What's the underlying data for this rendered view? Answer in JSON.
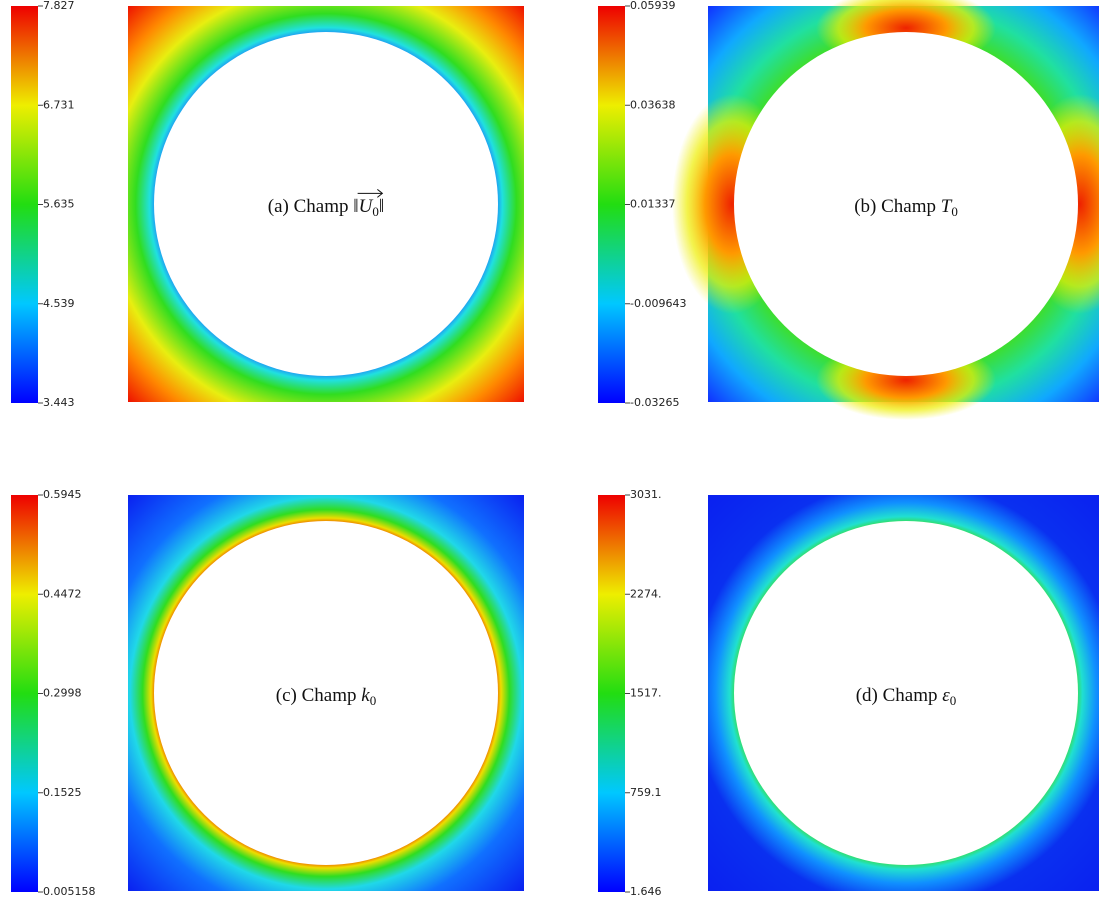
{
  "panels": [
    {
      "caption": "(a) Champ",
      "norm_left": "‖",
      "symbol": "U",
      "sub": "0",
      "norm_right": "‖",
      "ticks": [
        "7.827",
        "6.731",
        "5.635",
        "4.539",
        "3.443"
      ]
    },
    {
      "caption": "(b) Champ",
      "symbol": "T",
      "sub": "0",
      "ticks": [
        "0.05939",
        "0.03638",
        "0.01337",
        "-0.009643",
        "-0.03265"
      ]
    },
    {
      "caption": "(c) Champ",
      "symbol": "k",
      "sub": "0",
      "ticks": [
        "0.5945",
        "0.4472",
        "0.2998",
        "0.1525",
        "0.005158"
      ]
    },
    {
      "caption": "(d) Champ",
      "symbol": "ε",
      "sub": "0",
      "ticks": [
        "3031.",
        "2274.",
        "1517.",
        "759.1",
        "1.646"
      ]
    }
  ]
}
